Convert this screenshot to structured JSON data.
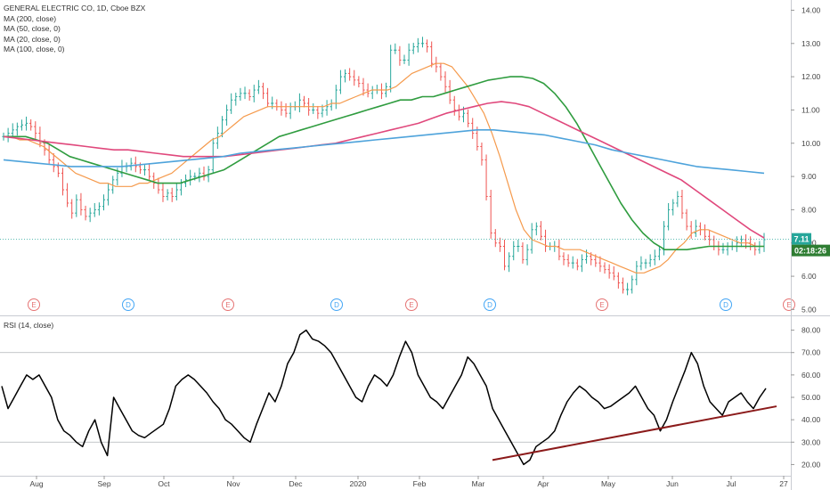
{
  "header": {
    "title": "GENERAL ELECTRIC CO, 1D, Cboe BZX",
    "ma_legend": [
      "MA (200, close)",
      "MA (50, close, 0)",
      "MA (20, close, 0)",
      "MA (100, close, 0)"
    ],
    "rsi_legend": "RSI (14, close)"
  },
  "badges": {
    "last_price": "7.11",
    "countdown": "02:18:26"
  },
  "colors": {
    "up": "#26a69a",
    "down": "#ef5350",
    "ma20": "#f59a4c",
    "ma50": "#2f9c3f",
    "ma100": "#e0487c",
    "ma200": "#4ea3db",
    "rsi": "#000000",
    "trendline": "#8b1a1a",
    "price_badge": "#26a69a",
    "countdown_badge": "#2e7d32"
  },
  "chart_data": [
    {
      "type": "candlestick",
      "title": "GENERAL ELECTRIC CO, 1D, Cboe BZX",
      "x_ticks": [
        "Aug",
        "Sep",
        "Oct",
        "Nov",
        "Dec",
        "2020",
        "Feb",
        "Mar",
        "Apr",
        "May",
        "Jun",
        "Jul",
        "27"
      ],
      "y_ticks": [
        "14.00",
        "13.00",
        "12.00",
        "11.00",
        "10.00",
        "9.00",
        "8.00",
        "7.00",
        "6.00",
        "5.00"
      ],
      "ylim": [
        4.85,
        14.2
      ],
      "last_price": 7.11,
      "closes": [
        10.2,
        10.3,
        10.4,
        10.5,
        10.55,
        10.6,
        10.5,
        10.3,
        10.0,
        9.8,
        9.5,
        9.3,
        9.1,
        8.6,
        8.2,
        7.9,
        8.3,
        8.0,
        7.8,
        7.9,
        8.0,
        8.1,
        8.3,
        8.6,
        8.9,
        9.1,
        9.3,
        9.3,
        9.4,
        9.3,
        9.2,
        9.2,
        9.0,
        8.8,
        8.6,
        8.4,
        8.5,
        8.4,
        8.6,
        8.8,
        8.9,
        9.0,
        9.0,
        9.1,
        9.0,
        9.2,
        10.0,
        10.3,
        10.7,
        11.0,
        11.3,
        11.4,
        11.5,
        11.5,
        11.4,
        11.6,
        11.7,
        11.5,
        11.2,
        11.2,
        11.1,
        11.0,
        10.9,
        11.1,
        11.1,
        11.3,
        11.2,
        11.0,
        11.0,
        10.9,
        11.0,
        11.1,
        11.2,
        11.6,
        12.0,
        12.1,
        12.0,
        11.9,
        11.8,
        11.6,
        11.5,
        11.6,
        11.6,
        11.5,
        11.7,
        12.8,
        12.8,
        12.5,
        12.5,
        12.8,
        12.9,
        13.0,
        13.0,
        12.9,
        12.4,
        12.3,
        12.0,
        11.7,
        11.3,
        11.0,
        10.8,
        10.9,
        10.6,
        10.3,
        9.9,
        9.5,
        8.4,
        7.3,
        7.0,
        6.9,
        6.3,
        6.6,
        6.9,
        6.9,
        6.5,
        6.8,
        7.4,
        7.5,
        7.2,
        6.9,
        6.9,
        6.9,
        6.6,
        6.5,
        6.4,
        6.4,
        6.3,
        6.5,
        6.6,
        6.5,
        6.4,
        6.3,
        6.2,
        6.1,
        6.0,
        5.8,
        5.6,
        5.6,
        5.9,
        6.3,
        6.4,
        6.4,
        6.5,
        6.6,
        6.8,
        7.5,
        8.0,
        8.2,
        8.4,
        7.9,
        7.5,
        7.3,
        7.5,
        7.4,
        7.2,
        7.1,
        6.9,
        6.8,
        6.8,
        6.9,
        6.9,
        7.0,
        7.1,
        7.0,
        6.9,
        6.8,
        6.9,
        7.1
      ],
      "series": [
        {
          "name": "MA (20, close, 0)",
          "values": [
            10.2,
            10.2,
            10.1,
            10.1,
            10.0,
            9.9,
            9.7,
            9.5,
            9.3,
            9.1,
            9.0,
            8.9,
            8.8,
            8.8,
            8.7,
            8.7,
            8.7,
            8.8,
            8.8,
            8.9,
            9.0,
            9.1,
            9.3,
            9.5,
            9.7,
            9.9,
            10.1,
            10.2,
            10.4,
            10.6,
            10.8,
            10.9,
            11.0,
            11.1,
            11.1,
            11.1,
            11.1,
            11.1,
            11.1,
            11.1,
            11.1,
            11.2,
            11.2,
            11.3,
            11.4,
            11.5,
            11.6,
            11.6,
            11.6,
            11.7,
            11.9,
            12.1,
            12.2,
            12.3,
            12.4,
            12.4,
            12.3,
            12.0,
            11.7,
            11.3,
            10.9,
            10.3,
            9.6,
            8.8,
            8.0,
            7.4,
            7.1,
            7.0,
            6.9,
            6.9,
            6.8,
            6.8,
            6.8,
            6.7,
            6.6,
            6.5,
            6.4,
            6.3,
            6.2,
            6.1,
            6.1,
            6.2,
            6.3,
            6.5,
            6.8,
            7.0,
            7.3,
            7.4,
            7.4,
            7.3,
            7.2,
            7.1,
            7.0,
            7.0,
            6.9,
            6.9
          ]
        },
        {
          "name": "MA (50, close, 0)",
          "values": [
            10.2,
            10.2,
            10.2,
            10.1,
            10.0,
            9.8,
            9.6,
            9.5,
            9.4,
            9.3,
            9.2,
            9.1,
            9.0,
            8.9,
            8.8,
            8.8,
            8.8,
            8.9,
            9.0,
            9.1,
            9.2,
            9.4,
            9.6,
            9.8,
            10.0,
            10.2,
            10.3,
            10.4,
            10.5,
            10.6,
            10.7,
            10.8,
            10.9,
            11.0,
            11.1,
            11.2,
            11.3,
            11.3,
            11.4,
            11.4,
            11.5,
            11.6,
            11.7,
            11.8,
            11.9,
            11.95,
            12.0,
            12.0,
            11.95,
            11.8,
            11.5,
            11.1,
            10.6,
            10.0,
            9.4,
            8.8,
            8.2,
            7.7,
            7.3,
            7.0,
            6.8,
            6.8,
            6.8,
            6.85,
            6.9,
            6.9,
            6.9,
            6.9,
            6.9,
            6.9
          ]
        },
        {
          "name": "MA (100, close, 0)",
          "values": [
            10.2,
            10.15,
            10.1,
            10.05,
            10.0,
            9.95,
            9.9,
            9.85,
            9.8,
            9.8,
            9.75,
            9.7,
            9.65,
            9.6,
            9.6,
            9.6,
            9.6,
            9.65,
            9.7,
            9.75,
            9.8,
            9.85,
            9.9,
            9.95,
            10.0,
            10.1,
            10.2,
            10.3,
            10.4,
            10.5,
            10.6,
            10.75,
            10.9,
            11.0,
            11.1,
            11.2,
            11.25,
            11.2,
            11.1,
            10.9,
            10.7,
            10.5,
            10.3,
            10.1,
            9.9,
            9.7,
            9.5,
            9.3,
            9.1,
            8.9,
            8.6,
            8.3,
            8.0,
            7.7,
            7.4,
            7.15
          ]
        },
        {
          "name": "MA (200, close)",
          "values": [
            9.5,
            9.45,
            9.4,
            9.35,
            9.3,
            9.3,
            9.3,
            9.3,
            9.35,
            9.4,
            9.45,
            9.5,
            9.55,
            9.6,
            9.7,
            9.75,
            9.8,
            9.85,
            9.9,
            9.95,
            10.0,
            10.05,
            10.1,
            10.15,
            10.2,
            10.25,
            10.3,
            10.35,
            10.4,
            10.4,
            10.35,
            10.3,
            10.25,
            10.15,
            10.05,
            9.95,
            9.8,
            9.7,
            9.6,
            9.5,
            9.4,
            9.3,
            9.25,
            9.2,
            9.15,
            9.1
          ]
        }
      ],
      "event_markers": [
        "E",
        "D",
        "E",
        "D",
        "E",
        "D",
        "E",
        "D",
        "E"
      ]
    },
    {
      "type": "line",
      "title": "RSI (14, close)",
      "y_ticks": [
        "80.00",
        "70.00",
        "60.00",
        "50.00",
        "40.00",
        "30.00",
        "20.00"
      ],
      "ylim": [
        15,
        85
      ],
      "levels": [
        70,
        30
      ],
      "series": [
        {
          "name": "RSI (14, close)",
          "values": [
            55,
            45,
            50,
            55,
            60,
            58,
            60,
            55,
            50,
            40,
            35,
            33,
            30,
            28,
            35,
            40,
            30,
            24,
            50,
            45,
            40,
            35,
            33,
            32,
            34,
            36,
            38,
            45,
            55,
            58,
            60,
            58,
            55,
            52,
            48,
            45,
            40,
            38,
            35,
            32,
            30,
            38,
            45,
            52,
            48,
            55,
            65,
            70,
            78,
            80,
            76,
            75,
            73,
            70,
            65,
            60,
            55,
            50,
            48,
            55,
            60,
            58,
            55,
            60,
            68,
            75,
            70,
            60,
            55,
            50,
            48,
            45,
            50,
            55,
            60,
            68,
            65,
            60,
            55,
            45,
            40,
            35,
            30,
            25,
            20,
            22,
            28,
            30,
            32,
            35,
            42,
            48,
            52,
            55,
            53,
            50,
            48,
            45,
            46,
            48,
            50,
            52,
            55,
            50,
            45,
            42,
            35,
            40,
            48,
            55,
            62,
            70,
            65,
            55,
            48,
            45,
            42,
            48,
            50,
            52,
            48,
            45,
            50,
            54
          ]
        },
        {
          "name": "trendline",
          "x": [
            0,
            1
          ],
          "values": [
            22,
            46
          ]
        }
      ]
    }
  ]
}
